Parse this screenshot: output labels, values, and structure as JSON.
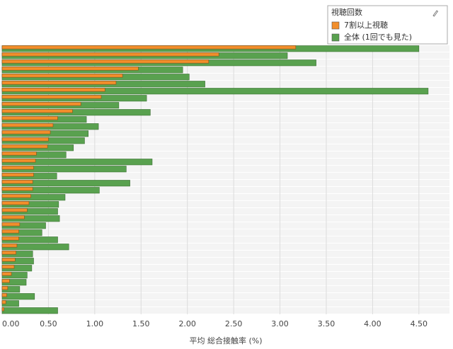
{
  "chart_data": {
    "type": "overlap_hbar",
    "x_label": "平均 総合接触率 (%)",
    "legend_title": "視聴回数",
    "legend": "top-right",
    "grid": true,
    "categories": [
      null,
      null,
      null,
      null,
      null,
      null,
      null,
      null,
      null,
      null,
      null,
      null,
      null,
      null,
      null,
      null,
      null,
      null,
      null,
      null,
      null,
      null,
      null,
      null,
      null,
      null,
      null,
      null,
      null,
      null,
      null,
      null,
      null,
      null,
      null,
      null,
      null,
      null
    ],
    "series": [
      {
        "name": "全体 (1回でも見た)",
        "color": "#59a14f",
        "values": [
          4.5,
          3.08,
          3.39,
          1.95,
          2.02,
          2.19,
          4.6,
          1.56,
          1.26,
          1.6,
          0.91,
          1.04,
          0.93,
          0.89,
          0.77,
          0.69,
          1.62,
          1.34,
          0.59,
          1.38,
          1.05,
          0.68,
          0.61,
          0.6,
          0.62,
          0.47,
          0.43,
          0.6,
          0.72,
          0.33,
          0.34,
          0.32,
          0.27,
          0.26,
          0.19,
          0.35,
          0.18,
          0.6
        ]
      },
      {
        "name": "7割以上視聴",
        "color": "#f28e2b",
        "values": [
          3.17,
          2.34,
          2.23,
          1.47,
          1.3,
          1.23,
          1.11,
          1.07,
          0.85,
          0.76,
          0.6,
          0.55,
          0.52,
          0.5,
          0.49,
          0.37,
          0.36,
          0.34,
          0.34,
          0.33,
          0.33,
          0.31,
          0.29,
          0.27,
          0.24,
          0.19,
          0.18,
          0.18,
          0.16,
          0.15,
          0.14,
          0.13,
          0.1,
          0.08,
          0.06,
          0.05,
          0.04,
          0.02
        ]
      }
    ],
    "xlim": [
      0,
      4.83
    ],
    "xticks": [
      {
        "value": 0,
        "label": "0.00"
      },
      {
        "value": 0.5,
        "label": "0.50"
      },
      {
        "value": 1,
        "label": "1.00"
      },
      {
        "value": 1.5,
        "label": "1.50"
      },
      {
        "value": 2,
        "label": "2.00"
      },
      {
        "value": 2.5,
        "label": "2.50"
      },
      {
        "value": 3,
        "label": "3.00"
      },
      {
        "value": 3.5,
        "label": "3.50"
      },
      {
        "value": 4,
        "label": "4.00"
      },
      {
        "value": 4.5,
        "label": "4.50"
      }
    ]
  }
}
